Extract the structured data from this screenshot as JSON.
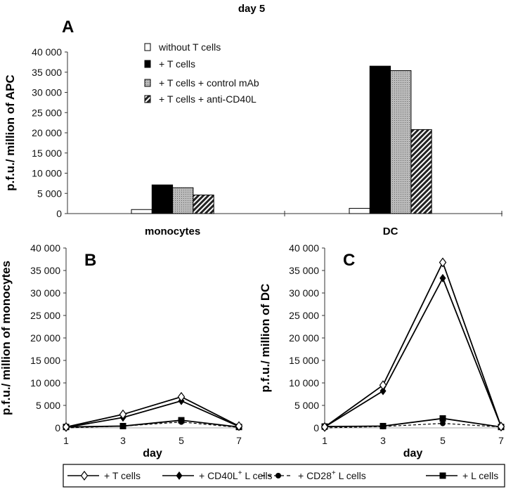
{
  "chart_data": [
    {
      "panel": "A",
      "type": "bar",
      "title": "day 5",
      "ylabel": "p.f.u./ million of APC",
      "categories": [
        "monocytes",
        "DC"
      ],
      "ylim": [
        0,
        40000
      ],
      "yticks": [
        "0",
        "5 000",
        "10 000",
        "15 000",
        "20 000",
        "25 000",
        "30 000",
        "35 000",
        "40 000"
      ],
      "legend_placement": "top-left",
      "series": [
        {
          "name": "without T cells",
          "style": "white",
          "values": [
            1000,
            1300
          ]
        },
        {
          "name": "+ T cells",
          "style": "black",
          "values": [
            7100,
            36500
          ]
        },
        {
          "name": "+ T cells + control mAb",
          "style": "gray-dotted",
          "values": [
            6400,
            35400
          ]
        },
        {
          "name": "+ T cells + anti-CD40L",
          "style": "hatched",
          "values": [
            4600,
            20800
          ]
        }
      ]
    },
    {
      "panel": "B",
      "type": "line",
      "xlabel": "day",
      "ylabel": "p.f.u./ million of monocytes",
      "x": [
        1,
        3,
        5,
        7
      ],
      "ylim": [
        0,
        40000
      ],
      "yticks": [
        "0",
        "5 000",
        "10 000",
        "15 000",
        "20 000",
        "25 000",
        "30 000",
        "35 000",
        "40 000"
      ],
      "series": [
        {
          "name": "+ T cells",
          "values": [
            200,
            3000,
            6900,
            400
          ]
        },
        {
          "name": "+ CD40L+ L cells",
          "values": [
            100,
            2300,
            6000,
            300
          ]
        },
        {
          "name": "+ CD28+ L cells",
          "values": [
            0,
            400,
            1300,
            100
          ]
        },
        {
          "name": "+ L cells",
          "values": [
            200,
            400,
            1700,
            200
          ]
        }
      ]
    },
    {
      "panel": "C",
      "type": "line",
      "xlabel": "day",
      "ylabel": "p.f.u./ million of DC",
      "x": [
        1,
        3,
        5,
        7
      ],
      "ylim": [
        0,
        40000
      ],
      "yticks": [
        "0",
        "5 000",
        "10 000",
        "15 000",
        "20 000",
        "25 000",
        "30 000",
        "35 000",
        "40 000"
      ],
      "series": [
        {
          "name": "+ T cells",
          "values": [
            200,
            9500,
            36800,
            300
          ]
        },
        {
          "name": "+ CD40L+ L cells",
          "values": [
            200,
            8200,
            33300,
            300
          ]
        },
        {
          "name": "+ CD28+ L cells",
          "values": [
            0,
            300,
            1000,
            200
          ]
        },
        {
          "name": "+ L cells",
          "values": [
            300,
            400,
            2100,
            200
          ]
        }
      ]
    }
  ],
  "line_legend": [
    {
      "label": "+ T cells",
      "marker": "open-diamond",
      "dash": false
    },
    {
      "label": "+ CD40L",
      "sup": "+",
      "rest": " L cells",
      "marker": "filled-diamond",
      "dash": false
    },
    {
      "label": "+ CD28",
      "sup": "+",
      "rest": " L cells",
      "marker": "circle",
      "dash": true
    },
    {
      "label": "+ L cells",
      "marker": "square",
      "dash": false
    }
  ]
}
